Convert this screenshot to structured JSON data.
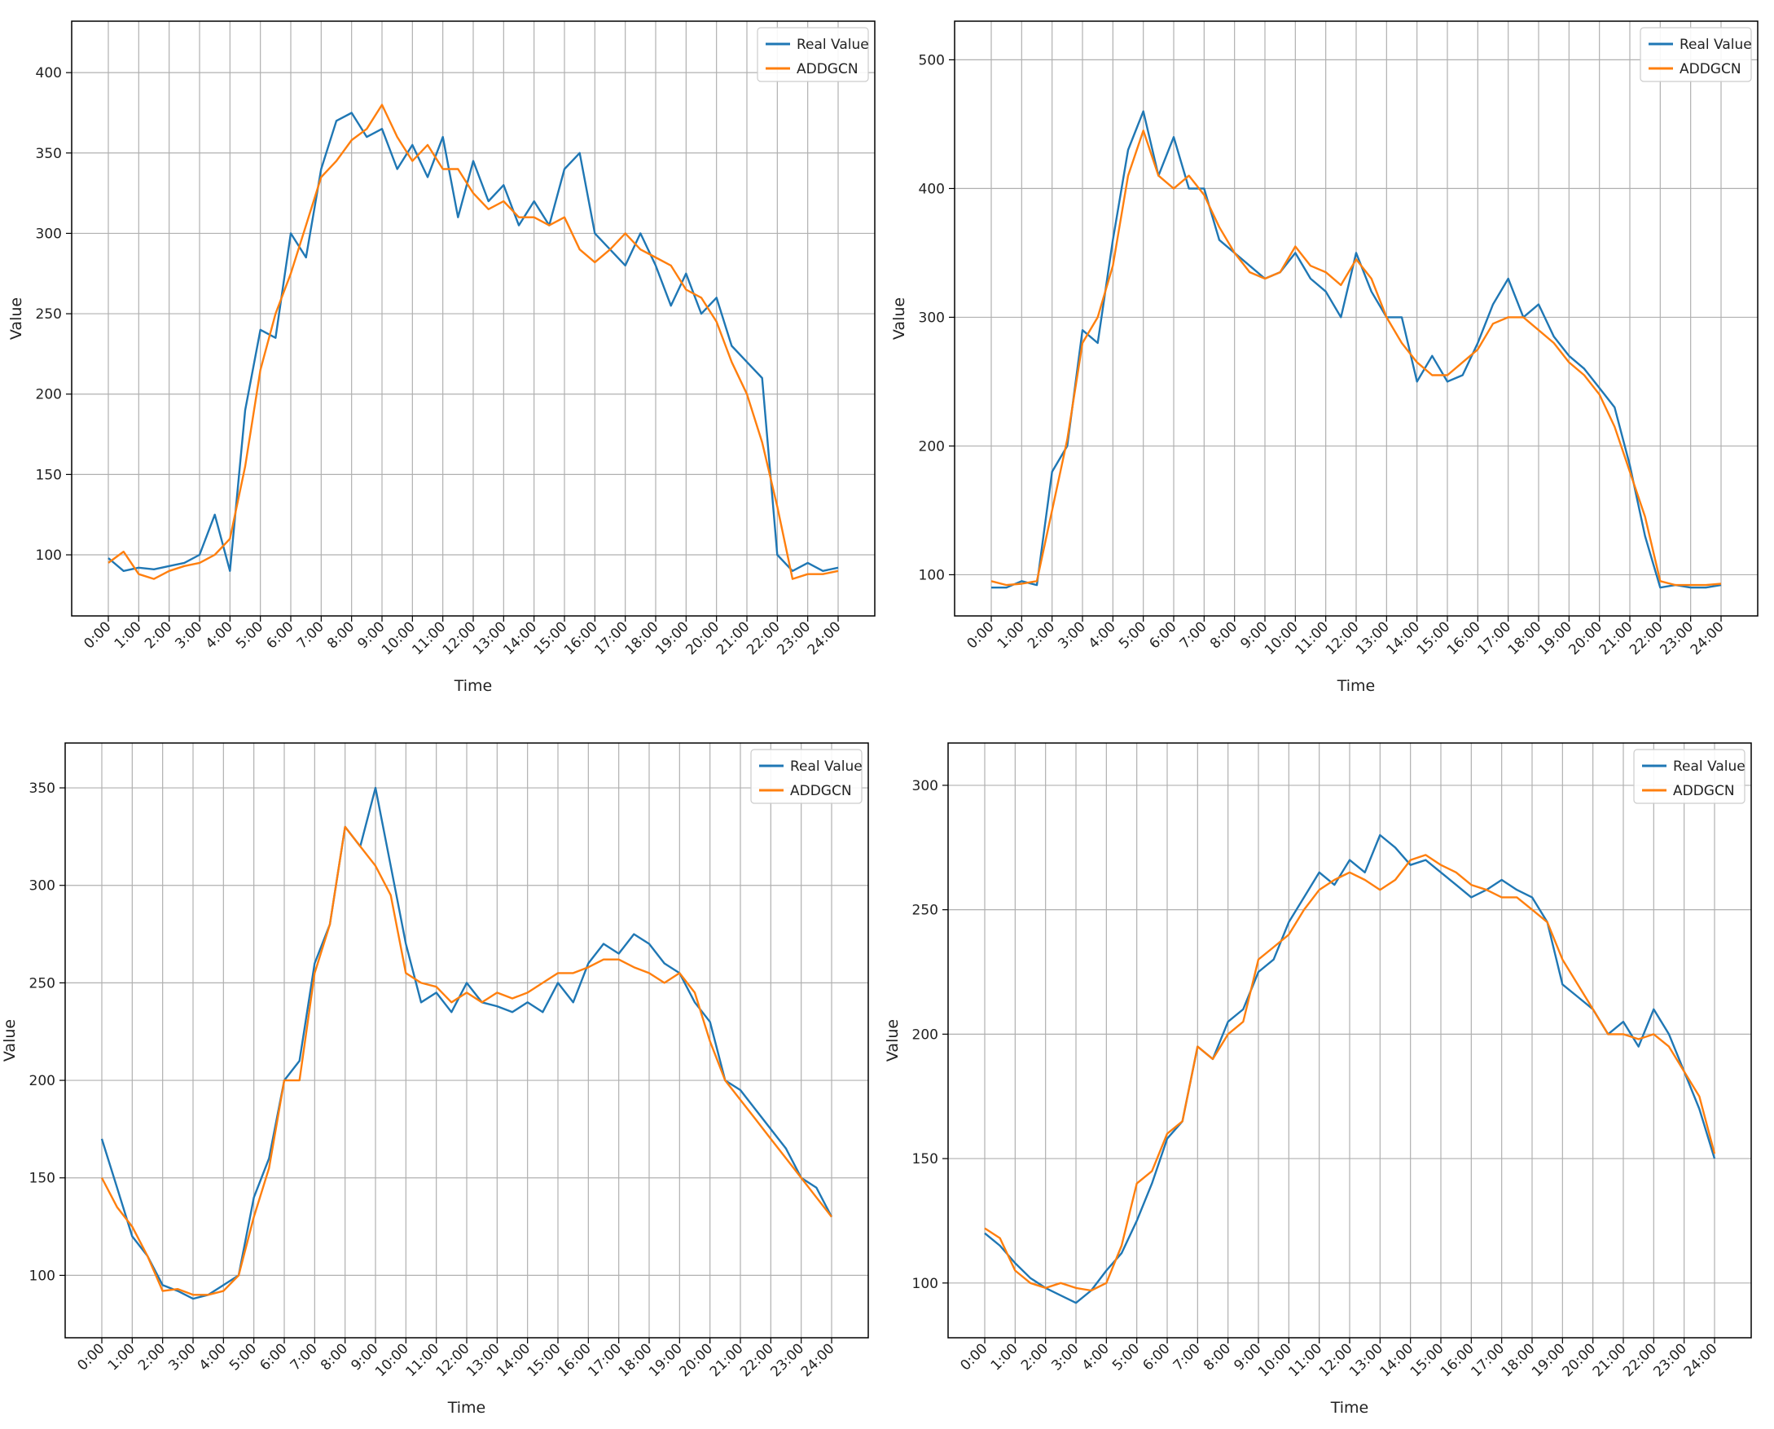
{
  "colors": {
    "real": "#1f77b4",
    "pred": "#ff7f0e",
    "grid": "#b0b0b0",
    "axis": "#000000",
    "text": "#222222"
  },
  "chart_data": [
    {
      "type": "line",
      "xlabel": "Time",
      "ylabel": "Value",
      "xticks": [
        "0:00",
        "1:00",
        "2:00",
        "3:00",
        "4:00",
        "5:00",
        "6:00",
        "7:00",
        "8:00",
        "9:00",
        "10:00",
        "11:00",
        "12:00",
        "13:00",
        "14:00",
        "15:00",
        "16:00",
        "17:00",
        "18:00",
        "19:00",
        "20:00",
        "21:00",
        "22:00",
        "23:00",
        "24:00"
      ],
      "yticks": [
        100,
        150,
        200,
        250,
        300,
        350,
        400
      ],
      "ylim": [
        62,
        432
      ],
      "grid": true,
      "legend_position": "top-right",
      "x_hours": [
        0,
        0.5,
        1,
        1.5,
        2,
        2.5,
        3,
        3.5,
        4,
        4.5,
        5,
        5.5,
        6,
        6.5,
        7,
        7.5,
        8,
        8.5,
        9,
        9.5,
        10,
        10.5,
        11,
        11.5,
        12,
        12.5,
        13,
        13.5,
        14,
        14.5,
        15,
        15.5,
        16,
        16.5,
        17,
        17.5,
        18,
        18.5,
        19,
        19.5,
        20,
        20.5,
        21,
        21.5,
        22,
        22.5,
        23,
        23.5,
        24
      ],
      "series": [
        {
          "name": "Real Value",
          "values": [
            98,
            90,
            92,
            91,
            93,
            95,
            100,
            125,
            90,
            190,
            240,
            235,
            300,
            285,
            340,
            370,
            375,
            360,
            365,
            340,
            355,
            335,
            360,
            310,
            345,
            320,
            330,
            305,
            320,
            305,
            340,
            350,
            300,
            290,
            280,
            300,
            280,
            255,
            275,
            250,
            260,
            230,
            220,
            210,
            100,
            90,
            95,
            90,
            92
          ]
        },
        {
          "name": "ADDGCN",
          "values": [
            95,
            102,
            88,
            85,
            90,
            93,
            95,
            100,
            110,
            155,
            215,
            250,
            275,
            305,
            335,
            345,
            358,
            365,
            380,
            360,
            345,
            355,
            340,
            340,
            325,
            315,
            320,
            310,
            310,
            305,
            310,
            290,
            282,
            290,
            300,
            290,
            285,
            280,
            265,
            260,
            245,
            220,
            200,
            170,
            130,
            85,
            88,
            88,
            90
          ]
        }
      ]
    },
    {
      "type": "line",
      "xlabel": "Time",
      "ylabel": "Value",
      "xticks": [
        "0:00",
        "1:00",
        "2:00",
        "3:00",
        "4:00",
        "5:00",
        "6:00",
        "7:00",
        "8:00",
        "9:00",
        "10:00",
        "11:00",
        "12:00",
        "13:00",
        "14:00",
        "15:00",
        "16:00",
        "17:00",
        "18:00",
        "19:00",
        "20:00",
        "21:00",
        "22:00",
        "23:00",
        "24:00"
      ],
      "yticks": [
        100,
        200,
        300,
        400,
        500
      ],
      "ylim": [
        68,
        530
      ],
      "grid": true,
      "legend_position": "top-right",
      "x_hours": [
        0,
        0.5,
        1,
        1.5,
        2,
        2.5,
        3,
        3.5,
        4,
        4.5,
        5,
        5.5,
        6,
        6.5,
        7,
        7.5,
        8,
        8.5,
        9,
        9.5,
        10,
        10.5,
        11,
        11.5,
        12,
        12.5,
        13,
        13.5,
        14,
        14.5,
        15,
        15.5,
        16,
        16.5,
        17,
        17.5,
        18,
        18.5,
        19,
        19.5,
        20,
        20.5,
        21,
        21.5,
        22,
        22.5,
        23,
        23.5,
        24
      ],
      "series": [
        {
          "name": "Real Value",
          "values": [
            90,
            90,
            95,
            92,
            180,
            200,
            290,
            280,
            360,
            430,
            460,
            410,
            440,
            400,
            400,
            360,
            350,
            340,
            330,
            335,
            350,
            330,
            320,
            300,
            350,
            320,
            300,
            300,
            250,
            270,
            250,
            255,
            280,
            310,
            330,
            300,
            310,
            285,
            270,
            260,
            245,
            230,
            185,
            130,
            90,
            92,
            90,
            90,
            92
          ]
        },
        {
          "name": "ADDGCN",
          "values": [
            95,
            92,
            93,
            95,
            150,
            205,
            280,
            300,
            340,
            410,
            445,
            410,
            400,
            410,
            395,
            370,
            350,
            335,
            330,
            335,
            355,
            340,
            335,
            325,
            345,
            330,
            300,
            280,
            265,
            255,
            255,
            265,
            275,
            295,
            300,
            300,
            290,
            280,
            265,
            255,
            240,
            215,
            180,
            145,
            95,
            92,
            92,
            92,
            93
          ]
        }
      ]
    },
    {
      "type": "line",
      "xlabel": "Time",
      "ylabel": "Value",
      "xticks": [
        "0:00",
        "1:00",
        "2:00",
        "3:00",
        "4:00",
        "5:00",
        "6:00",
        "7:00",
        "8:00",
        "9:00",
        "10:00",
        "11:00",
        "12:00",
        "13:00",
        "14:00",
        "15:00",
        "16:00",
        "17:00",
        "18:00",
        "19:00",
        "20:00",
        "21:00",
        "22:00",
        "23:00",
        "24:00"
      ],
      "yticks": [
        100,
        150,
        200,
        250,
        300,
        350
      ],
      "ylim": [
        68,
        373
      ],
      "grid": true,
      "legend_position": "top-right",
      "x_hours": [
        0,
        0.5,
        1,
        1.5,
        2,
        2.5,
        3,
        3.5,
        4,
        4.5,
        5,
        5.5,
        6,
        6.5,
        7,
        7.5,
        8,
        8.5,
        9,
        9.5,
        10,
        10.5,
        11,
        11.5,
        12,
        12.5,
        13,
        13.5,
        14,
        14.5,
        15,
        15.5,
        16,
        16.5,
        17,
        17.5,
        18,
        18.5,
        19,
        19.5,
        20,
        20.5,
        21,
        21.5,
        22,
        22.5,
        23,
        23.5,
        24
      ],
      "series": [
        {
          "name": "Real Value",
          "values": [
            170,
            145,
            120,
            110,
            95,
            92,
            88,
            90,
            95,
            100,
            140,
            160,
            200,
            210,
            260,
            280,
            330,
            320,
            350,
            310,
            270,
            240,
            245,
            235,
            250,
            240,
            238,
            235,
            240,
            235,
            250,
            240,
            260,
            270,
            265,
            275,
            270,
            260,
            255,
            240,
            230,
            200,
            195,
            185,
            175,
            165,
            150,
            145,
            130
          ]
        },
        {
          "name": "ADDGCN",
          "values": [
            150,
            135,
            125,
            110,
            92,
            93,
            90,
            90,
            92,
            100,
            130,
            155,
            200,
            200,
            255,
            280,
            330,
            320,
            310,
            295,
            255,
            250,
            248,
            240,
            245,
            240,
            245,
            242,
            245,
            250,
            255,
            255,
            258,
            262,
            262,
            258,
            255,
            250,
            255,
            245,
            220,
            200,
            190,
            180,
            170,
            160,
            150,
            140,
            130
          ]
        }
      ]
    },
    {
      "type": "line",
      "xlabel": "Time",
      "ylabel": "Value",
      "xticks": [
        "0:00",
        "1:00",
        "2:00",
        "3:00",
        "4:00",
        "5:00",
        "6:00",
        "7:00",
        "8:00",
        "9:00",
        "10:00",
        "11:00",
        "12:00",
        "13:00",
        "14:00",
        "15:00",
        "16:00",
        "17:00",
        "18:00",
        "19:00",
        "20:00",
        "21:00",
        "22:00",
        "23:00",
        "24:00"
      ],
      "yticks": [
        100,
        150,
        200,
        250,
        300
      ],
      "ylim": [
        78,
        317
      ],
      "grid": true,
      "legend_position": "top-right",
      "x_hours": [
        0,
        0.5,
        1,
        1.5,
        2,
        2.5,
        3,
        3.5,
        4,
        4.5,
        5,
        5.5,
        6,
        6.5,
        7,
        7.5,
        8,
        8.5,
        9,
        9.5,
        10,
        10.5,
        11,
        11.5,
        12,
        12.5,
        13,
        13.5,
        14,
        14.5,
        15,
        15.5,
        16,
        16.5,
        17,
        17.5,
        18,
        18.5,
        19,
        19.5,
        20,
        20.5,
        21,
        21.5,
        22,
        22.5,
        23,
        23.5,
        24
      ],
      "series": [
        {
          "name": "Real Value",
          "values": [
            120,
            115,
            108,
            102,
            98,
            95,
            92,
            97,
            105,
            112,
            125,
            140,
            158,
            165,
            195,
            190,
            205,
            210,
            225,
            230,
            245,
            255,
            265,
            260,
            270,
            265,
            280,
            275,
            268,
            270,
            265,
            260,
            255,
            258,
            262,
            258,
            255,
            245,
            220,
            215,
            210,
            200,
            205,
            195,
            210,
            200,
            185,
            170,
            150
          ]
        },
        {
          "name": "ADDGCN",
          "values": [
            122,
            118,
            105,
            100,
            98,
            100,
            98,
            97,
            100,
            115,
            140,
            145,
            160,
            165,
            195,
            190,
            200,
            205,
            230,
            235,
            240,
            250,
            258,
            262,
            265,
            262,
            258,
            262,
            270,
            272,
            268,
            265,
            260,
            258,
            255,
            255,
            250,
            245,
            230,
            220,
            210,
            200,
            200,
            198,
            200,
            195,
            185,
            175,
            152
          ]
        }
      ]
    }
  ]
}
